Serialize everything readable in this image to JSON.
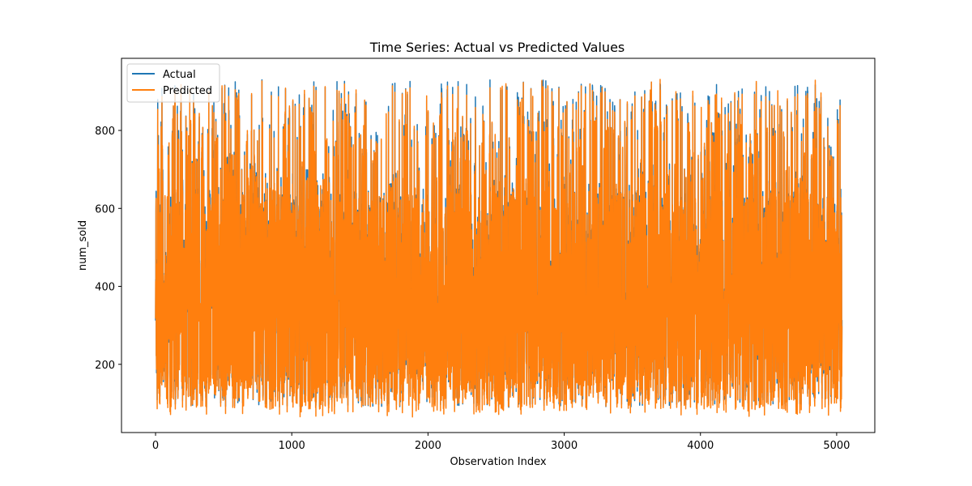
{
  "chart_data": {
    "type": "line",
    "title": "Time Series: Actual vs Predicted Values",
    "xlabel": "Observation Index",
    "ylabel": "num_sold",
    "xlim": [
      -250,
      5280
    ],
    "ylim": [
      25,
      985
    ],
    "x_ticks": [
      0,
      1000,
      2000,
      3000,
      4000,
      5000
    ],
    "y_ticks": [
      200,
      400,
      600,
      800
    ],
    "x_count": 5040,
    "value_range": [
      65,
      950
    ],
    "grid": false,
    "legend": "upper-left",
    "series": [
      {
        "name": "Actual",
        "color": "#1f77b4"
      },
      {
        "name": "Predicted",
        "color": "#ff7f0e"
      }
    ]
  }
}
